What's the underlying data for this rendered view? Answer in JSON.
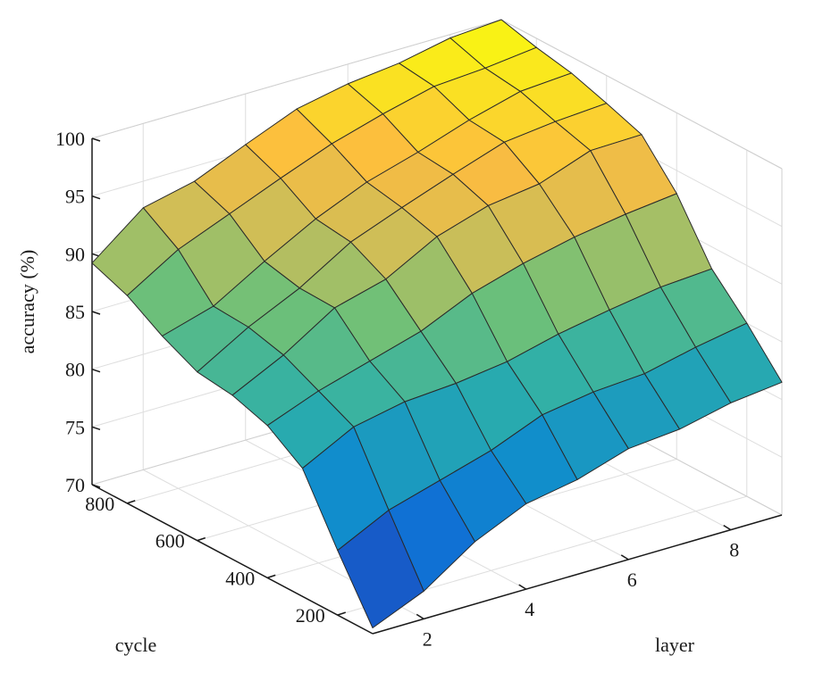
{
  "chart_data": {
    "type": "surface",
    "xlabel": "layer",
    "ylabel": "cycle",
    "zlabel": "accuracy (%)",
    "x_ticks": [
      "2",
      "4",
      "6",
      "8"
    ],
    "y_ticks": [
      "200",
      "400",
      "600",
      "800"
    ],
    "z_ticks": [
      "70",
      "75",
      "80",
      "85",
      "90",
      "95",
      "100"
    ],
    "xlim": [
      1,
      9
    ],
    "ylim": [
      100,
      900
    ],
    "zlim": [
      70,
      100
    ],
    "grid": true,
    "colormap": "parula",
    "x": [
      1,
      2,
      3,
      4,
      5,
      6,
      7,
      8,
      9
    ],
    "y": [
      100,
      200,
      300,
      400,
      500,
      600,
      700,
      800,
      900
    ],
    "z": [
      [
        70.5,
        72.4,
        75.4,
        77.4,
        78.2,
        79.6,
        80.0,
        81.0,
        81.5
      ],
      [
        75.6,
        77.8,
        79.1,
        80.4,
        82.2,
        82.9,
        83.2,
        84.2,
        85.0
      ],
      [
        81.1,
        83.4,
        84.3,
        84.6,
        85.2,
        86.3,
        87.1,
        87.8,
        88.1
      ],
      [
        83.2,
        84.9,
        86.2,
        87.5,
        89.5,
        90.8,
        91.8,
        92.5,
        93.0
      ],
      [
        84.2,
        86.4,
        89.2,
        90.4,
        92.8,
        94.2,
        94.8,
        96.4,
        96.5
      ],
      [
        84.6,
        87.2,
        89.3,
        92.0,
        93.7,
        95.3,
        96.8,
        97.3,
        97.6
      ],
      [
        86.1,
        87.4,
        90.0,
        92.4,
        94.3,
        95.6,
        97.1,
        98.3,
        98.6
      ],
      [
        88.0,
        90.7,
        92.5,
        94.3,
        96.0,
        97.3,
        98.4,
        98.7,
        99.2
      ],
      [
        89.2,
        92.7,
        93.7,
        95.6,
        97.4,
        98.3,
        98.8,
        99.7,
        100.0
      ]
    ]
  }
}
